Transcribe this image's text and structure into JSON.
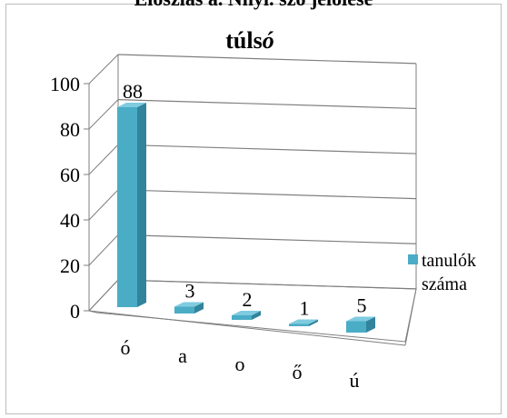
{
  "caption_top": "Eloszlás a. Nnyl. szó jelölése",
  "title_prefix": "túls",
  "title_suffix": "ó",
  "legend": {
    "line1": "tanulók",
    "line2": "száma"
  },
  "colors": {
    "bar_front": "#4bacc6",
    "bar_side": "#31849b",
    "bar_top": "#7fcbe0",
    "grid": "#7f7f7f",
    "text": "#000000"
  },
  "chart_data": {
    "type": "bar",
    "categories": [
      "ó",
      "a",
      "o",
      "ő",
      "ú"
    ],
    "series": [
      {
        "name": "tanulók száma",
        "values": [
          88,
          3,
          2,
          1,
          5
        ]
      }
    ],
    "title": "túlsó",
    "ylim": [
      0,
      100
    ],
    "yticks": [
      "0",
      "20",
      "40",
      "60",
      "80",
      "100"
    ],
    "data_labels": [
      "88",
      "3",
      "2",
      "1",
      "5"
    ],
    "grid": true,
    "legend_position": "right",
    "style": "3d-column"
  }
}
